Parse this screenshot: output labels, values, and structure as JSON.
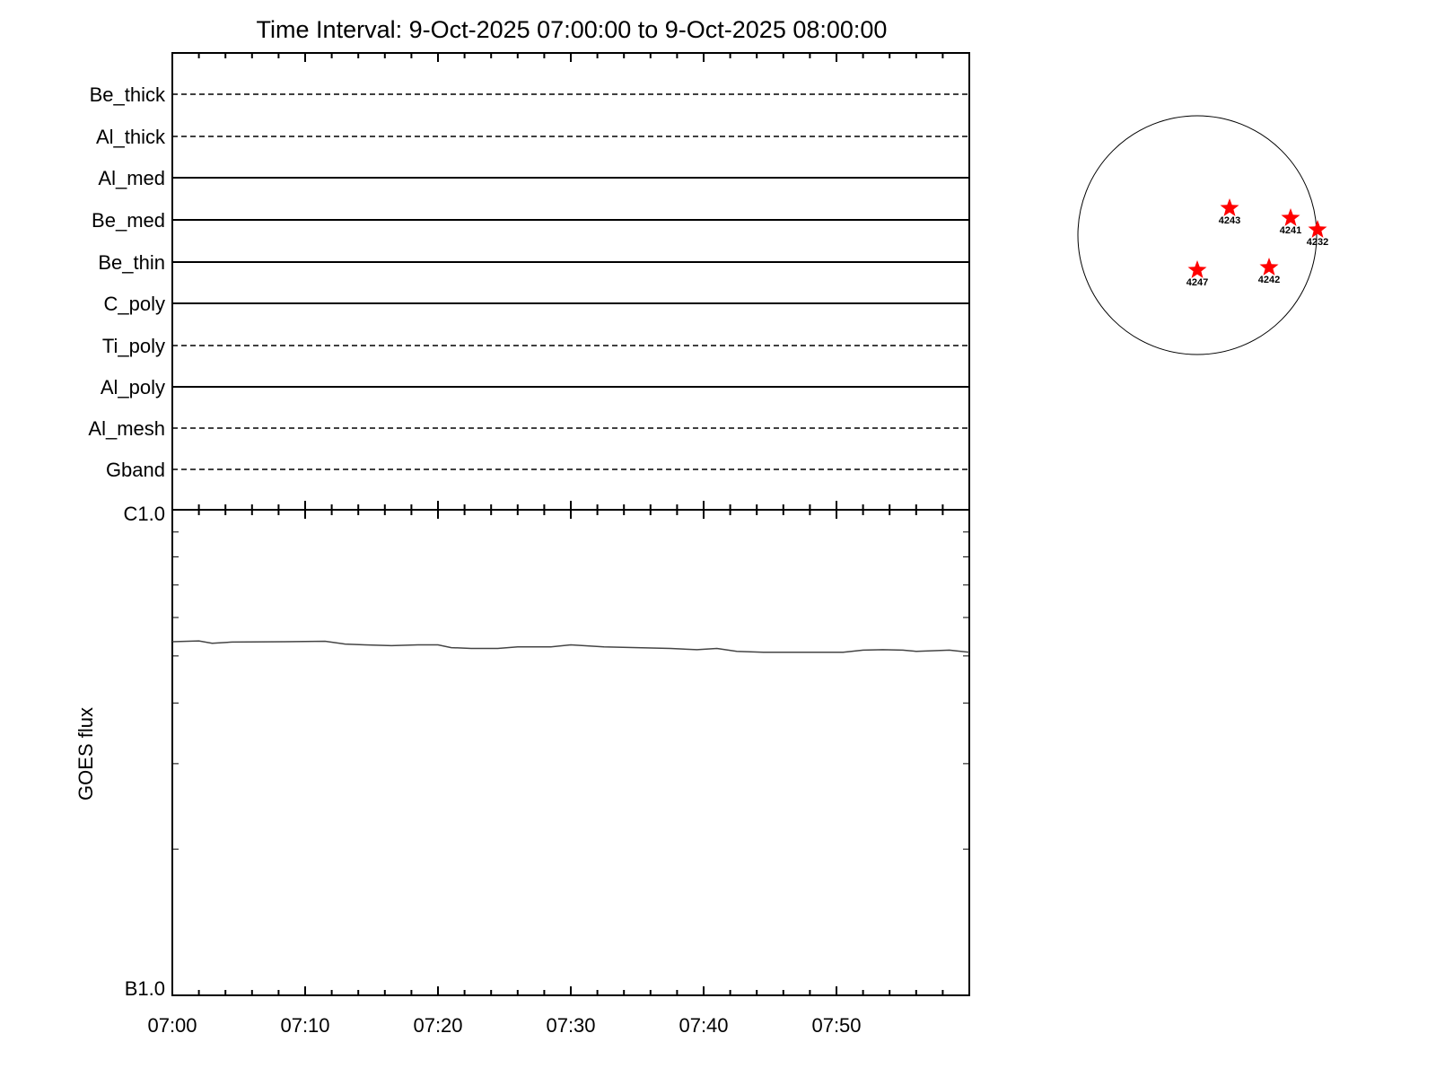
{
  "chart_data": [
    {
      "type": "table",
      "title": "Time Interval:  9-Oct-2025 07:00:00 to  9-Oct-2025 08:00:00",
      "channels": [
        {
          "name": "Be_thick",
          "style": "dashed"
        },
        {
          "name": "Al_thick",
          "style": "dashed"
        },
        {
          "name": "Al_med",
          "style": "solid"
        },
        {
          "name": "Be_med",
          "style": "solid"
        },
        {
          "name": "Be_thin",
          "style": "solid"
        },
        {
          "name": "C_poly",
          "style": "solid"
        },
        {
          "name": "Ti_poly",
          "style": "dashed"
        },
        {
          "name": "Al_poly",
          "style": "solid"
        },
        {
          "name": "Al_mesh",
          "style": "dashed"
        },
        {
          "name": "Gband",
          "style": "dashed"
        }
      ]
    },
    {
      "type": "line",
      "ylabel": "GOES flux",
      "yscale": "log",
      "ylim": [
        1e-07,
        1e-06
      ],
      "ytick_labels": [
        {
          "value": 1e-06,
          "label": "C1.0"
        },
        {
          "value": 1e-07,
          "label": "B1.0"
        }
      ],
      "xlim_minutes": [
        0,
        60
      ],
      "xtick_labels": [
        "07:00",
        "07:10",
        "07:20",
        "07:30",
        "07:40",
        "07:50"
      ],
      "series": [
        {
          "color": "#444444",
          "x": [
            "07:00:00",
            "07:02:00",
            "07:03:00",
            "07:04:30",
            "07:08:30",
            "07:11:30",
            "07:13:00",
            "07:14:30",
            "07:16:30",
            "07:18:30",
            "07:20:00",
            "07:21:00",
            "07:22:30",
            "07:24:30",
            "07:26:00",
            "07:28:30",
            "07:30:00",
            "07:32:30",
            "07:35:00",
            "07:37:30",
            "07:39:30",
            "07:41:00",
            "07:42:30",
            "07:44:30",
            "07:47:00",
            "07:50:30",
            "07:52:00",
            "07:53:30",
            "07:55:00",
            "07:56:00",
            "07:58:30",
            "08:00:00"
          ],
          "y": [
            5.35e-07,
            5.37e-07,
            5.31e-07,
            5.34e-07,
            5.35e-07,
            5.36e-07,
            5.29e-07,
            5.27e-07,
            5.25e-07,
            5.27e-07,
            5.27e-07,
            5.2e-07,
            5.18e-07,
            5.18e-07,
            5.22e-07,
            5.22e-07,
            5.27e-07,
            5.22e-07,
            5.2e-07,
            5.18e-07,
            5.15e-07,
            5.18e-07,
            5.11e-07,
            5.09e-07,
            5.09e-07,
            5.09e-07,
            5.14e-07,
            5.15e-07,
            5.14e-07,
            5.11e-07,
            5.14e-07,
            5.09e-07
          ]
        }
      ]
    },
    {
      "type": "scatter",
      "marker": "star",
      "marker_color": "#ff0000",
      "active_regions": [
        "4243",
        "4241",
        "4232",
        "4247",
        "4242"
      ]
    }
  ]
}
